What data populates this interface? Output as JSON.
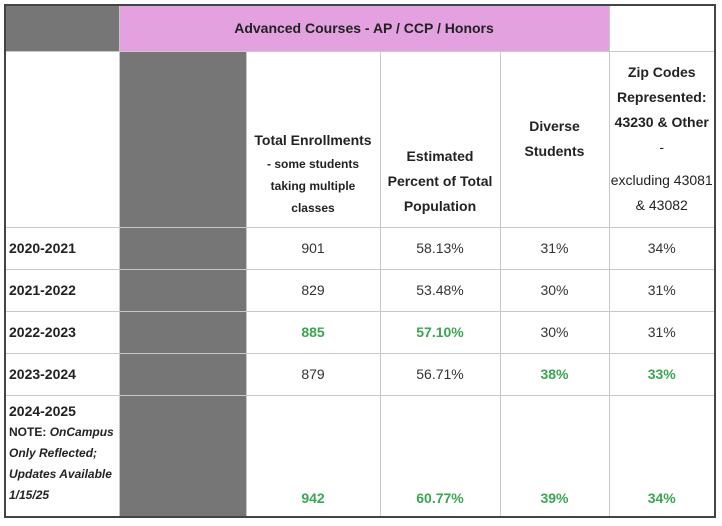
{
  "title": "Advanced Courses - AP / CCP / Honors",
  "columns": {
    "total_enrollments": "Total Enrollments",
    "total_enrollments_note": "- some students taking multiple classes",
    "estimated_percent": "Estimated Percent of Total Population",
    "diverse_students": "Diverse Students",
    "zip_codes_title": "Zip Codes Represented: 43230 & Other",
    "zip_codes_dash": "-",
    "zip_codes_excluding": "excluding 43081 & 43082"
  },
  "rows": [
    {
      "year": "2020-2021",
      "enrollments": "901",
      "percent": "58.13%",
      "diverse": "31%",
      "zip": "34%"
    },
    {
      "year": "2021-2022",
      "enrollments": "829",
      "percent": "53.48%",
      "diverse": "30%",
      "zip": "31%"
    },
    {
      "year": "2022-2023",
      "enrollments": "885",
      "percent": "57.10%",
      "diverse": "30%",
      "zip": "31%"
    },
    {
      "year": "2023-2024",
      "enrollments": "879",
      "percent": "56.71%",
      "diverse": "38%",
      "zip": "33%"
    },
    {
      "year": "2024-2025",
      "enrollments": "942",
      "percent": "60.77%",
      "diverse": "39%",
      "zip": "34%"
    }
  ],
  "note": {
    "label": "NOTE:",
    "text": "OnCampus Only Reflected; Updates Available 1/15/25"
  },
  "colors": {
    "header_pink": "#e3a1e0",
    "spacer_grey": "#767676",
    "highlight_green": "#3aa552"
  }
}
